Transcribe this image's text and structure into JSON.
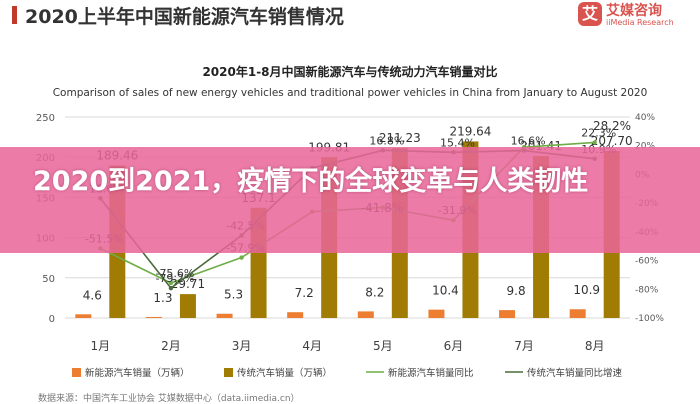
{
  "header": {
    "title": "2020上半年中国新能源汽车销售情况"
  },
  "logo": {
    "mark": "艾",
    "name_cn": "艾媒咨询",
    "name_en": "iiMedia Research"
  },
  "overlay": {
    "text": "2020到2021，疫情下的全球变革与人类韧性"
  },
  "source": {
    "text": "数据来源：中国汽车工业协会     艾媒数据中心（data.iimedia.cn）"
  },
  "colors": {
    "nev_bar": "#ed7d31",
    "traditional_bar": "#a07c05",
    "nev_yoy": "#70ad47",
    "traditional_yoy": "#4a6b3b",
    "grid": "#d9d9d9",
    "overlay": "#e96598"
  },
  "chart_data": {
    "type": "bar",
    "title": "2020年1-8月中国新能源汽车与传统动力汽车销量对比",
    "subtitle": "Comparison of sales of new energy vehicles and traditional power vehicles in China from January to August 2020",
    "categories": [
      "1月",
      "2月",
      "3月",
      "4月",
      "5月",
      "6月",
      "7月",
      "8月"
    ],
    "ylim_left": [
      0,
      250
    ],
    "left_ticks": [
      "0",
      "50",
      "100",
      "150",
      "200",
      "250"
    ],
    "ylim_right": [
      -100,
      40
    ],
    "right_ticks": [
      "-100%",
      "-80%",
      "-60%",
      "-40%",
      "-20%",
      "0%",
      "20%",
      "40%"
    ],
    "grid": true,
    "legend_position": "bottom",
    "series": [
      {
        "name": "新能源汽车销量（万辆）",
        "kind": "bar",
        "axis": "left",
        "values": [
          4.6,
          1.3,
          5.3,
          7.2,
          8.2,
          10.4,
          9.8,
          10.9
        ],
        "labels": [
          "4.6",
          "1.3",
          "5.3",
          "7.2",
          "8.2",
          "10.4",
          "9.8",
          "10.9"
        ]
      },
      {
        "name": "传统汽车销量（万辆）",
        "kind": "bar",
        "axis": "left",
        "values": [
          189.46,
          29.71,
          137.1,
          199.81,
          211.23,
          219.64,
          201.41,
          207.7
        ],
        "labels": [
          "189.46",
          "29.71",
          "137.1",
          "199.81",
          "211.23",
          "219.64",
          "201.41",
          "207.70"
        ]
      },
      {
        "name": "新能源汽车销量同比",
        "kind": "line",
        "axis": "right",
        "values": [
          -51.5,
          -75.6,
          -57.9,
          -26.0,
          -23.0,
          -31.9,
          19.0,
          22.3
        ],
        "labels": [
          "-51.5%",
          "-75.6%",
          "-57.9%",
          "",
          "",
          "-31.9%",
          "",
          "22.3%"
        ]
      },
      {
        "name": "传统汽车销量同比增速",
        "kind": "line",
        "axis": "right",
        "values": [
          -16.6,
          -79.2,
          -42.5,
          4.4,
          16.8,
          15.4,
          16.6,
          10.9
        ],
        "labels": [
          "-16.6%",
          "-79.2%",
          "-42.5%",
          "",
          "16.8%",
          "15.4%",
          "16.6%",
          "10.9%"
        ]
      }
    ],
    "extra_labels": [
      "28.2%",
      "-41.8%"
    ]
  }
}
